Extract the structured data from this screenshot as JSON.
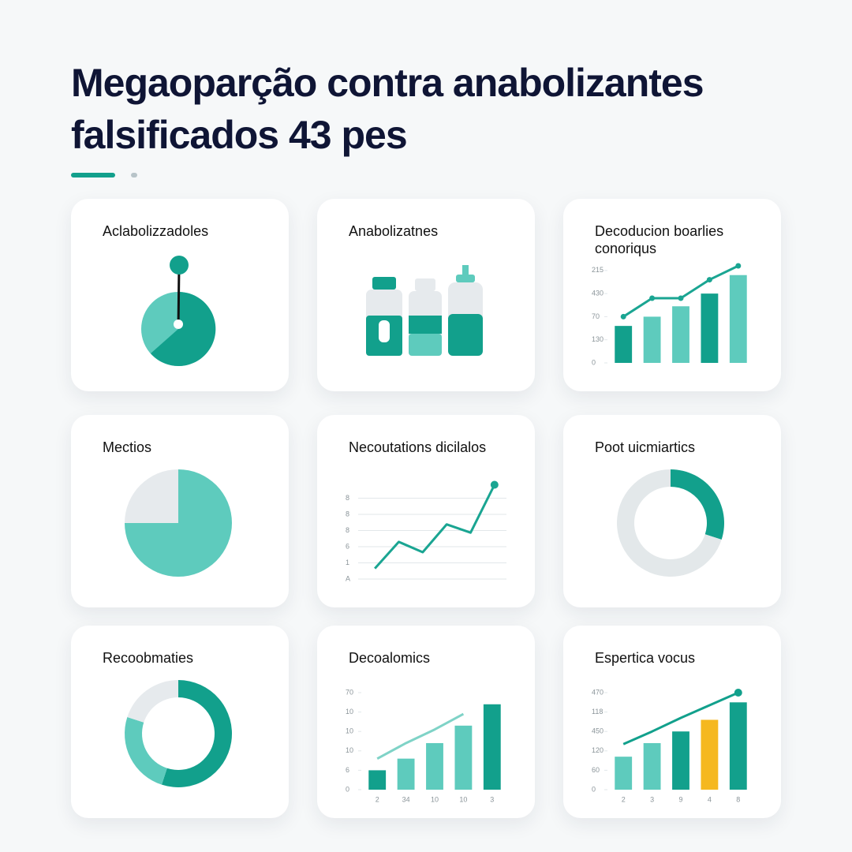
{
  "header": {
    "title": "Megaoparção contra anabolizantes falsificados 43 pes"
  },
  "icon_cards": [
    {
      "title": "Aclabolizzadoles"
    },
    {
      "title": "Anabolizatnes"
    }
  ],
  "chart_data": [
    {
      "type": "bar",
      "title": "Decoducion boarlies conoriqus",
      "categories": [
        null,
        null,
        null,
        null,
        null
      ],
      "series": [
        {
          "type": "bar",
          "colors": [
            "#12a08c",
            "#5ecbbd",
            "#5ecbbd",
            "#12a08c",
            "#5ecbbd"
          ],
          "values": [
            1.6,
            2.0,
            2.45,
            3.0,
            3.8
          ]
        },
        {
          "type": "line",
          "color": "#1aa592",
          "markers": true,
          "values": [
            2.0,
            2.8,
            2.8,
            3.6,
            4.2
          ]
        }
      ],
      "ylim": [
        0,
        4.2
      ],
      "yticks": [
        0,
        {
          "value": 1,
          "label": "130"
        },
        {
          "value": 2,
          "label": "70"
        },
        {
          "value": 3,
          "label": "430"
        },
        {
          "value": 4,
          "label": "215"
        }
      ],
      "grid": false
    },
    {
      "type": "pie",
      "title": "Mectios",
      "values": [
        75,
        25
      ],
      "colors": [
        "#5ecbbd",
        "#e6eaed"
      ]
    },
    {
      "type": "bar",
      "title": "Necoutations dicilalos",
      "categories": [
        null,
        null,
        null,
        null,
        null,
        null
      ],
      "series": [
        {
          "type": "line",
          "color": "#1aa592",
          "end_marker": true,
          "values": [
            0.65,
            2.3,
            1.66,
            3.38,
            2.87,
            5.83
          ]
        }
      ],
      "ylim": [
        0,
        6
      ],
      "yticks": [
        {
          "value": 0,
          "label": "A"
        },
        1,
        {
          "value": 2,
          "label": "6"
        },
        {
          "value": 3,
          "label": "8"
        },
        {
          "value": 4,
          "label": "8"
        },
        {
          "value": 5,
          "label": "8"
        }
      ],
      "grid": true
    },
    {
      "type": "donut",
      "title": "Poot uicmiartics",
      "values": [
        30,
        70
      ],
      "colors": [
        "#12a08c",
        "#e3e8ea"
      ]
    },
    {
      "type": "donut",
      "title": "Recoobmaties",
      "values": [
        55,
        25,
        20
      ],
      "colors": [
        "#12a08c",
        "#5ecbbd",
        "#e6eaed"
      ]
    },
    {
      "type": "bar",
      "title": "Decoalomics",
      "categories": [
        "2",
        "34",
        "10",
        "10",
        "3"
      ],
      "series": [
        {
          "type": "bar",
          "colors": [
            "#12a08c",
            "#5ecbbd",
            "#5ecbbd",
            "#5ecbbd",
            "#12a08c"
          ],
          "values": [
            1.0,
            1.6,
            2.4,
            3.3,
            4.4
          ]
        },
        {
          "type": "line",
          "color": "#7fd3c7",
          "values": [
            1.6,
            2.4,
            3.1,
            3.9,
            null
          ]
        }
      ],
      "ylim": [
        0,
        5
      ],
      "yticks": [
        0,
        {
          "value": 1,
          "label": "6"
        },
        {
          "value": 2,
          "label": "10"
        },
        {
          "value": 3,
          "label": "10"
        },
        {
          "value": 4,
          "label": "10"
        },
        {
          "value": 5,
          "label": "70"
        }
      ],
      "grid": false
    },
    {
      "type": "bar",
      "title": "Espertica vocus",
      "categories": [
        "2",
        "3",
        "9",
        "4",
        "8"
      ],
      "series": [
        {
          "type": "bar",
          "colors": [
            "#5ecbbd",
            "#5ecbbd",
            "#12a08c",
            "#f5b820",
            "#12a08c"
          ],
          "values": [
            1.7,
            2.4,
            3.0,
            3.6,
            4.5
          ]
        },
        {
          "type": "line",
          "color": "#12a08c",
          "end_marker": true,
          "values": [
            2.35,
            3.0,
            3.7,
            4.35,
            5.0
          ]
        }
      ],
      "ylim": [
        0,
        5
      ],
      "yticks": [
        0,
        {
          "value": 1,
          "label": "60"
        },
        {
          "value": 2,
          "label": "120"
        },
        {
          "value": 3,
          "label": "450"
        },
        {
          "value": 4,
          "label": "118"
        },
        {
          "value": 5,
          "label": "470"
        }
      ],
      "grid": false
    }
  ]
}
